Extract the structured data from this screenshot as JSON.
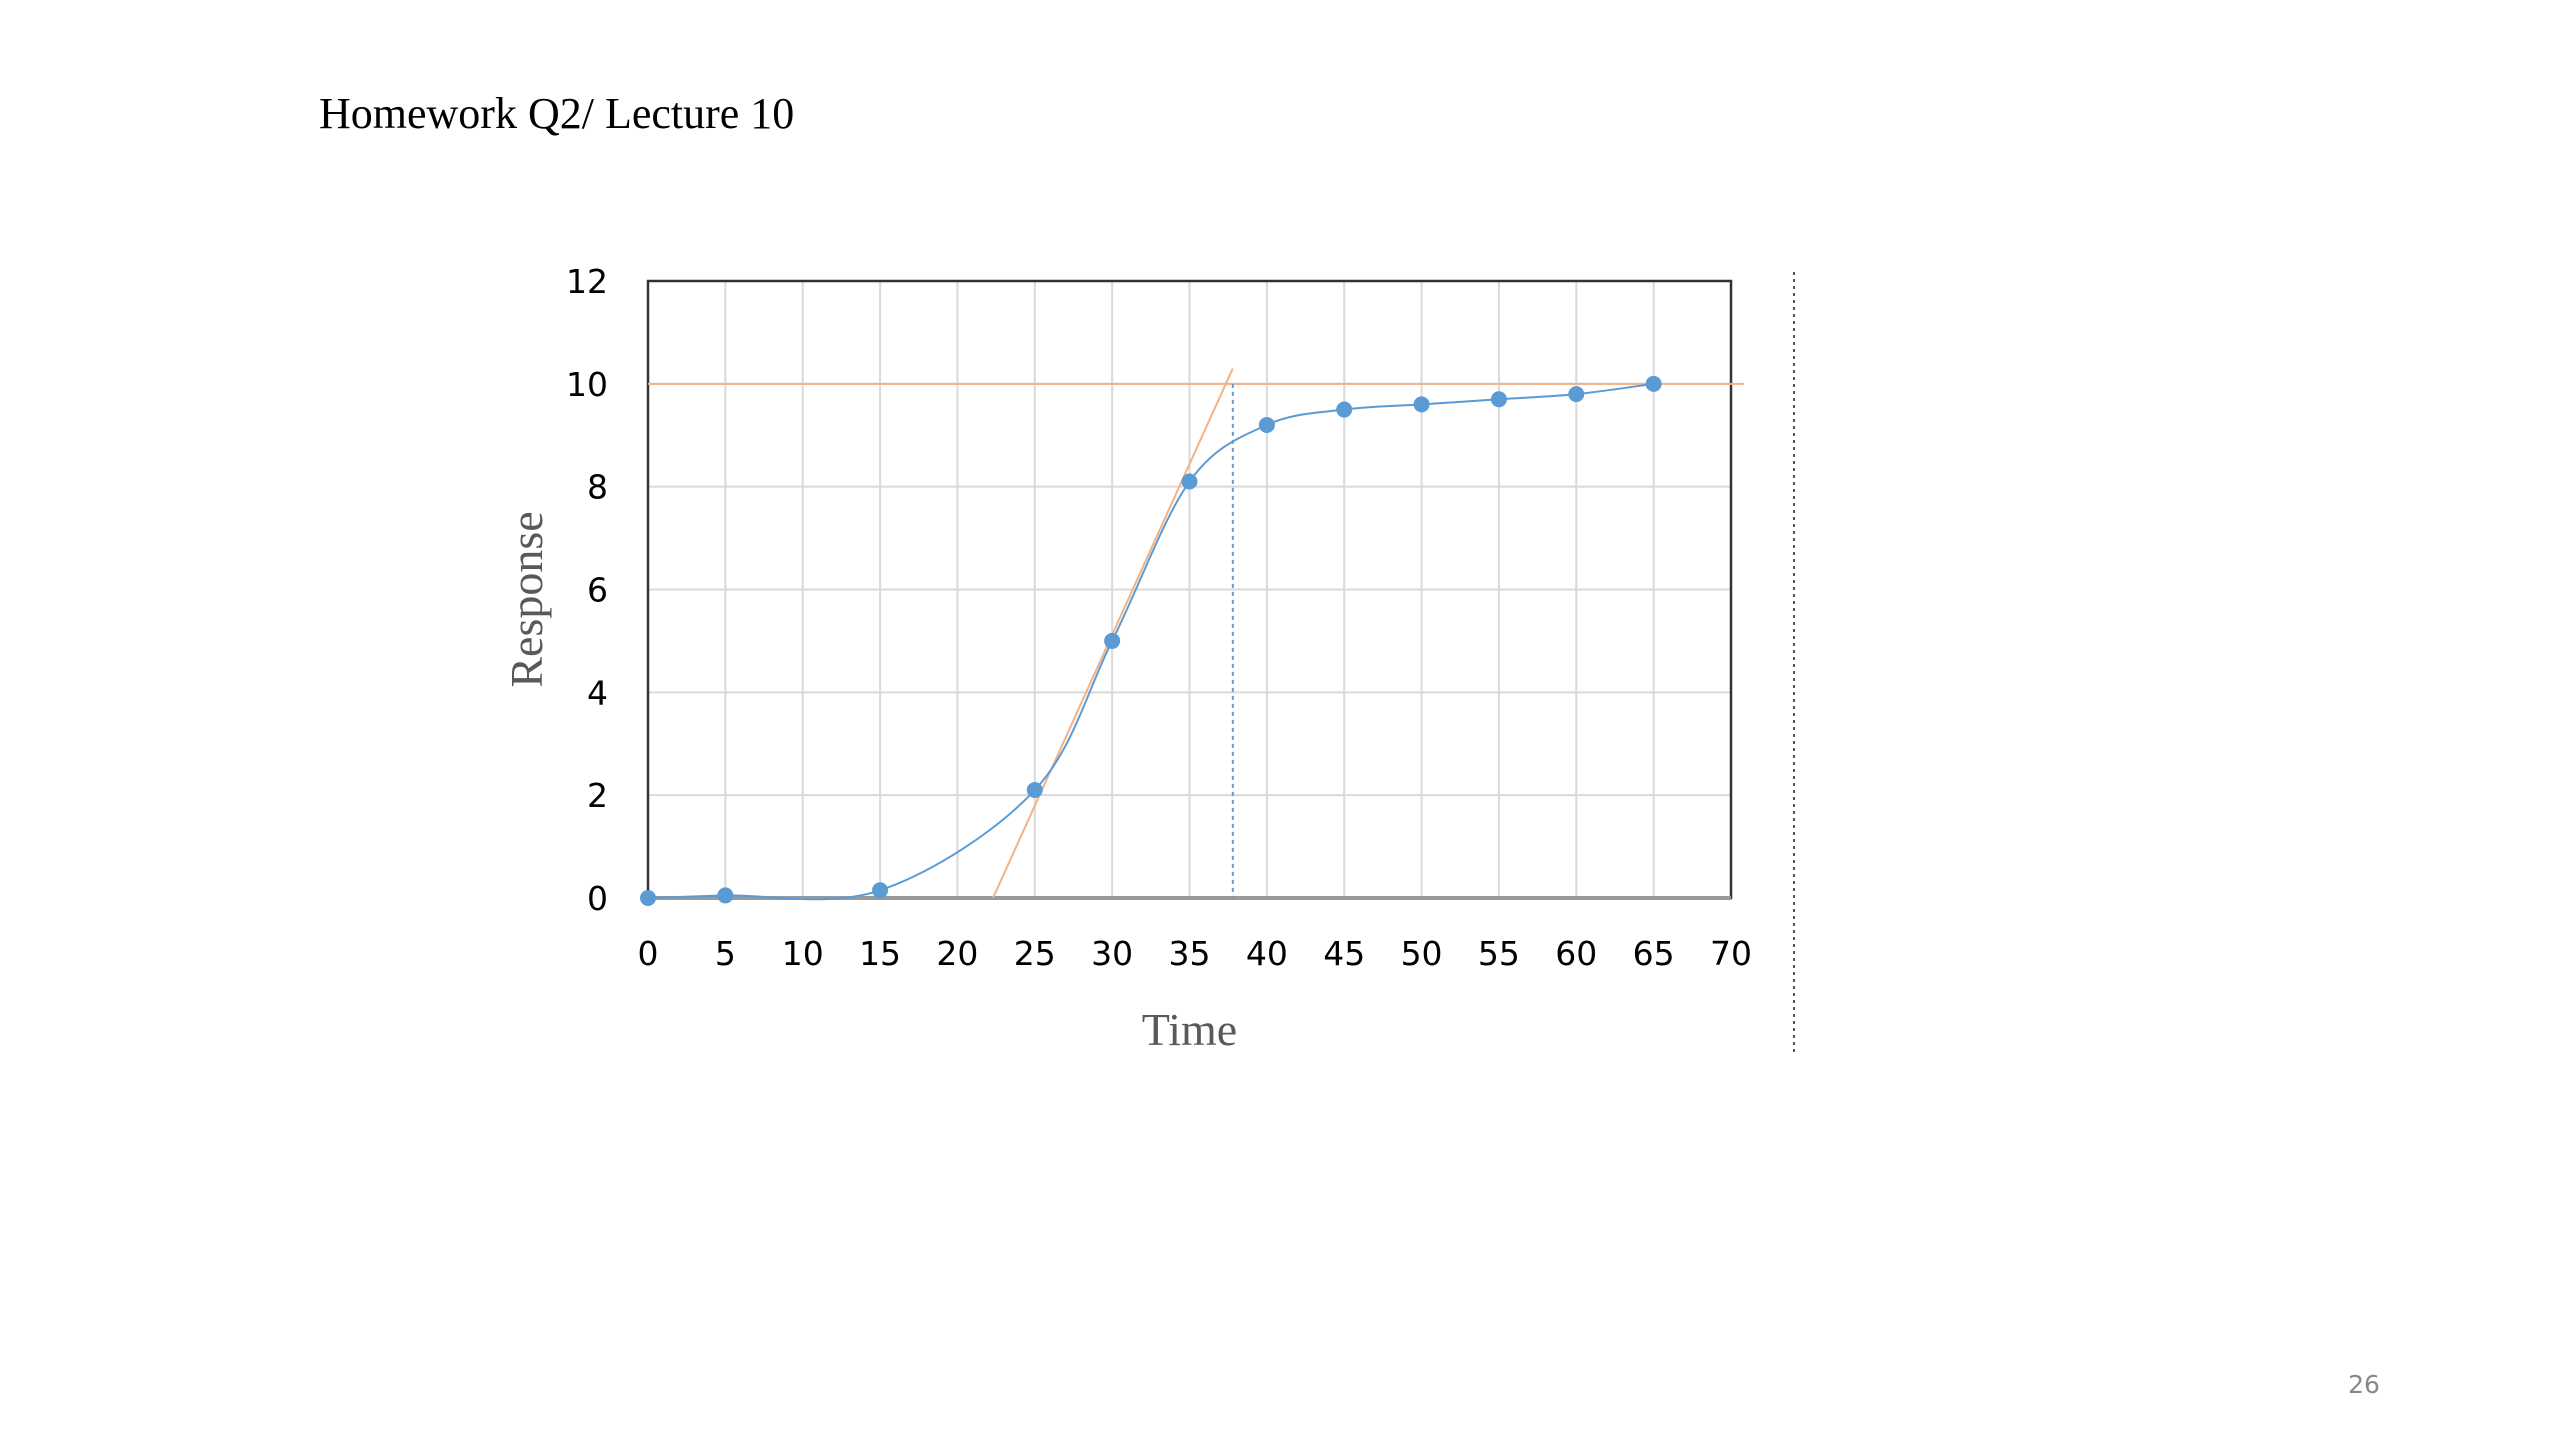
{
  "header": {
    "title": "Homework  Q2/ Lecture 10"
  },
  "page_number": 26,
  "chart_data": {
    "type": "line",
    "x_label": "Time",
    "y_label": "Response",
    "x": [
      0,
      5,
      15,
      25,
      30,
      35,
      40,
      45,
      50,
      55,
      60,
      65
    ],
    "series": [
      {
        "color": "#5b9bd5",
        "values": [
          0,
          0.05,
          0.15,
          2.1,
          5.0,
          8.1,
          9.2,
          9.5,
          9.6,
          9.7,
          9.8,
          10.0
        ]
      }
    ],
    "xlim": [
      0,
      70
    ],
    "xticks": [
      0,
      5,
      10,
      15,
      20,
      25,
      30,
      35,
      40,
      45,
      50,
      55,
      60,
      65,
      70
    ],
    "ylim": [
      0,
      12
    ],
    "yticks": [
      0,
      2,
      4,
      6,
      8,
      10,
      12
    ],
    "grid": true,
    "smooth": true,
    "tangent": {
      "color": "#f4b183",
      "x": [
        22.3,
        37.8
      ],
      "y": [
        0,
        10.3
      ]
    },
    "steady_state": {
      "color": "#f4b183",
      "value": 10
    },
    "vertical_line": {
      "color": "#5b9bd5",
      "x": 37.8
    }
  }
}
